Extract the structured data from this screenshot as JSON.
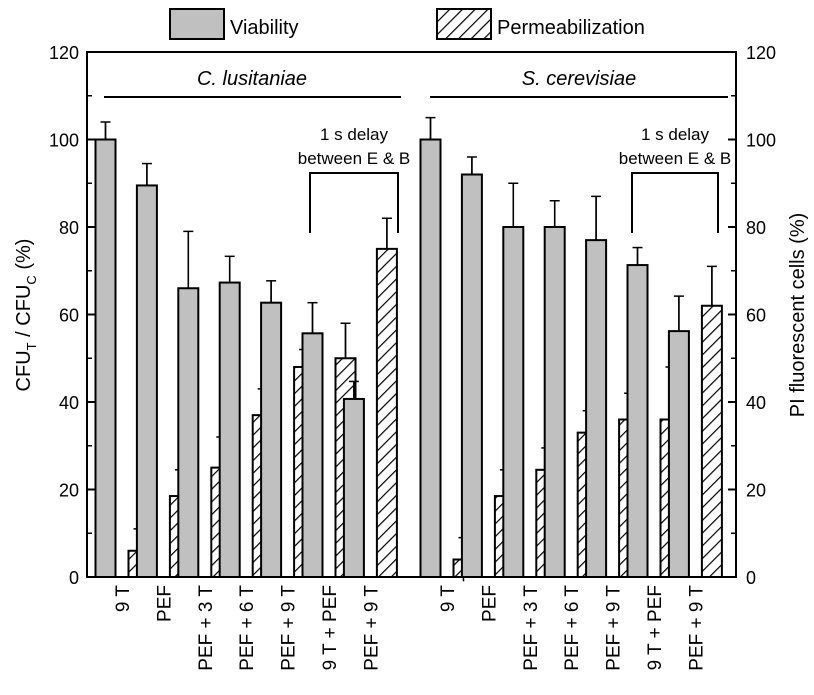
{
  "chart_data": {
    "type": "bar",
    "legend": {
      "position": "top-center",
      "entries": [
        {
          "label": "Viability",
          "fill": "gray"
        },
        {
          "label": "Permeabilization",
          "fill": "hatched"
        }
      ]
    },
    "y_left": {
      "label_main": "CFU",
      "label_sub1": "T",
      "label_mid": " / CFU",
      "label_sub2": "C",
      "label_tail": " (%)",
      "range": [
        0,
        120
      ],
      "ticks": [
        "0",
        "20",
        "40",
        "60",
        "80",
        "100",
        "120"
      ]
    },
    "y_right": {
      "label": "PI fluorescent cells (%)",
      "range": [
        0,
        120
      ],
      "ticks": [
        "0",
        "20",
        "40",
        "60",
        "80",
        "100",
        "120"
      ]
    },
    "grid": false,
    "groups": [
      {
        "title": "C. lusitaniae",
        "bracket_note_line1": "1 s delay",
        "bracket_note_line2": "between E & B",
        "categories": [
          "9 T",
          "PEF",
          "PEF + 3 T",
          "PEF + 6 T",
          "PEF + 9 T",
          "9 T + PEF",
          "PEF + 9 T"
        ],
        "series": [
          {
            "name": "Viability",
            "values": [
              100,
              89.5,
              66,
              67.3,
              62.7,
              55.7,
              40.7
            ],
            "errors": [
              4,
              5,
              13,
              6,
              5,
              7,
              4
            ]
          },
          {
            "name": "Permeabilization",
            "values": [
              6,
              18.5,
              25,
              37,
              48,
              50,
              75
            ],
            "errors": [
              5,
              6,
              7,
              6,
              4,
              8,
              7
            ]
          }
        ]
      },
      {
        "title": "S. cerevisiae",
        "bracket_note_line1": "1 s delay",
        "bracket_note_line2": "between E & B",
        "categories": [
          "9 T",
          "PEF",
          "PEF + 3 T",
          "PEF + 6 T",
          "PEF + 9 T",
          "9 T + PEF",
          "PEF + 9 T"
        ],
        "series": [
          {
            "name": "Viability",
            "values": [
              100,
              92,
              80,
              80,
              77,
              71.3,
              56.2
            ],
            "errors": [
              5,
              4,
              10,
              6,
              10,
              4,
              8
            ]
          },
          {
            "name": "Permeabilization",
            "values": [
              4,
              18.5,
              24.5,
              33,
              36,
              36,
              62
            ],
            "errors": [
              5,
              6,
              5,
              5,
              6,
              12,
              9
            ]
          }
        ]
      }
    ]
  }
}
